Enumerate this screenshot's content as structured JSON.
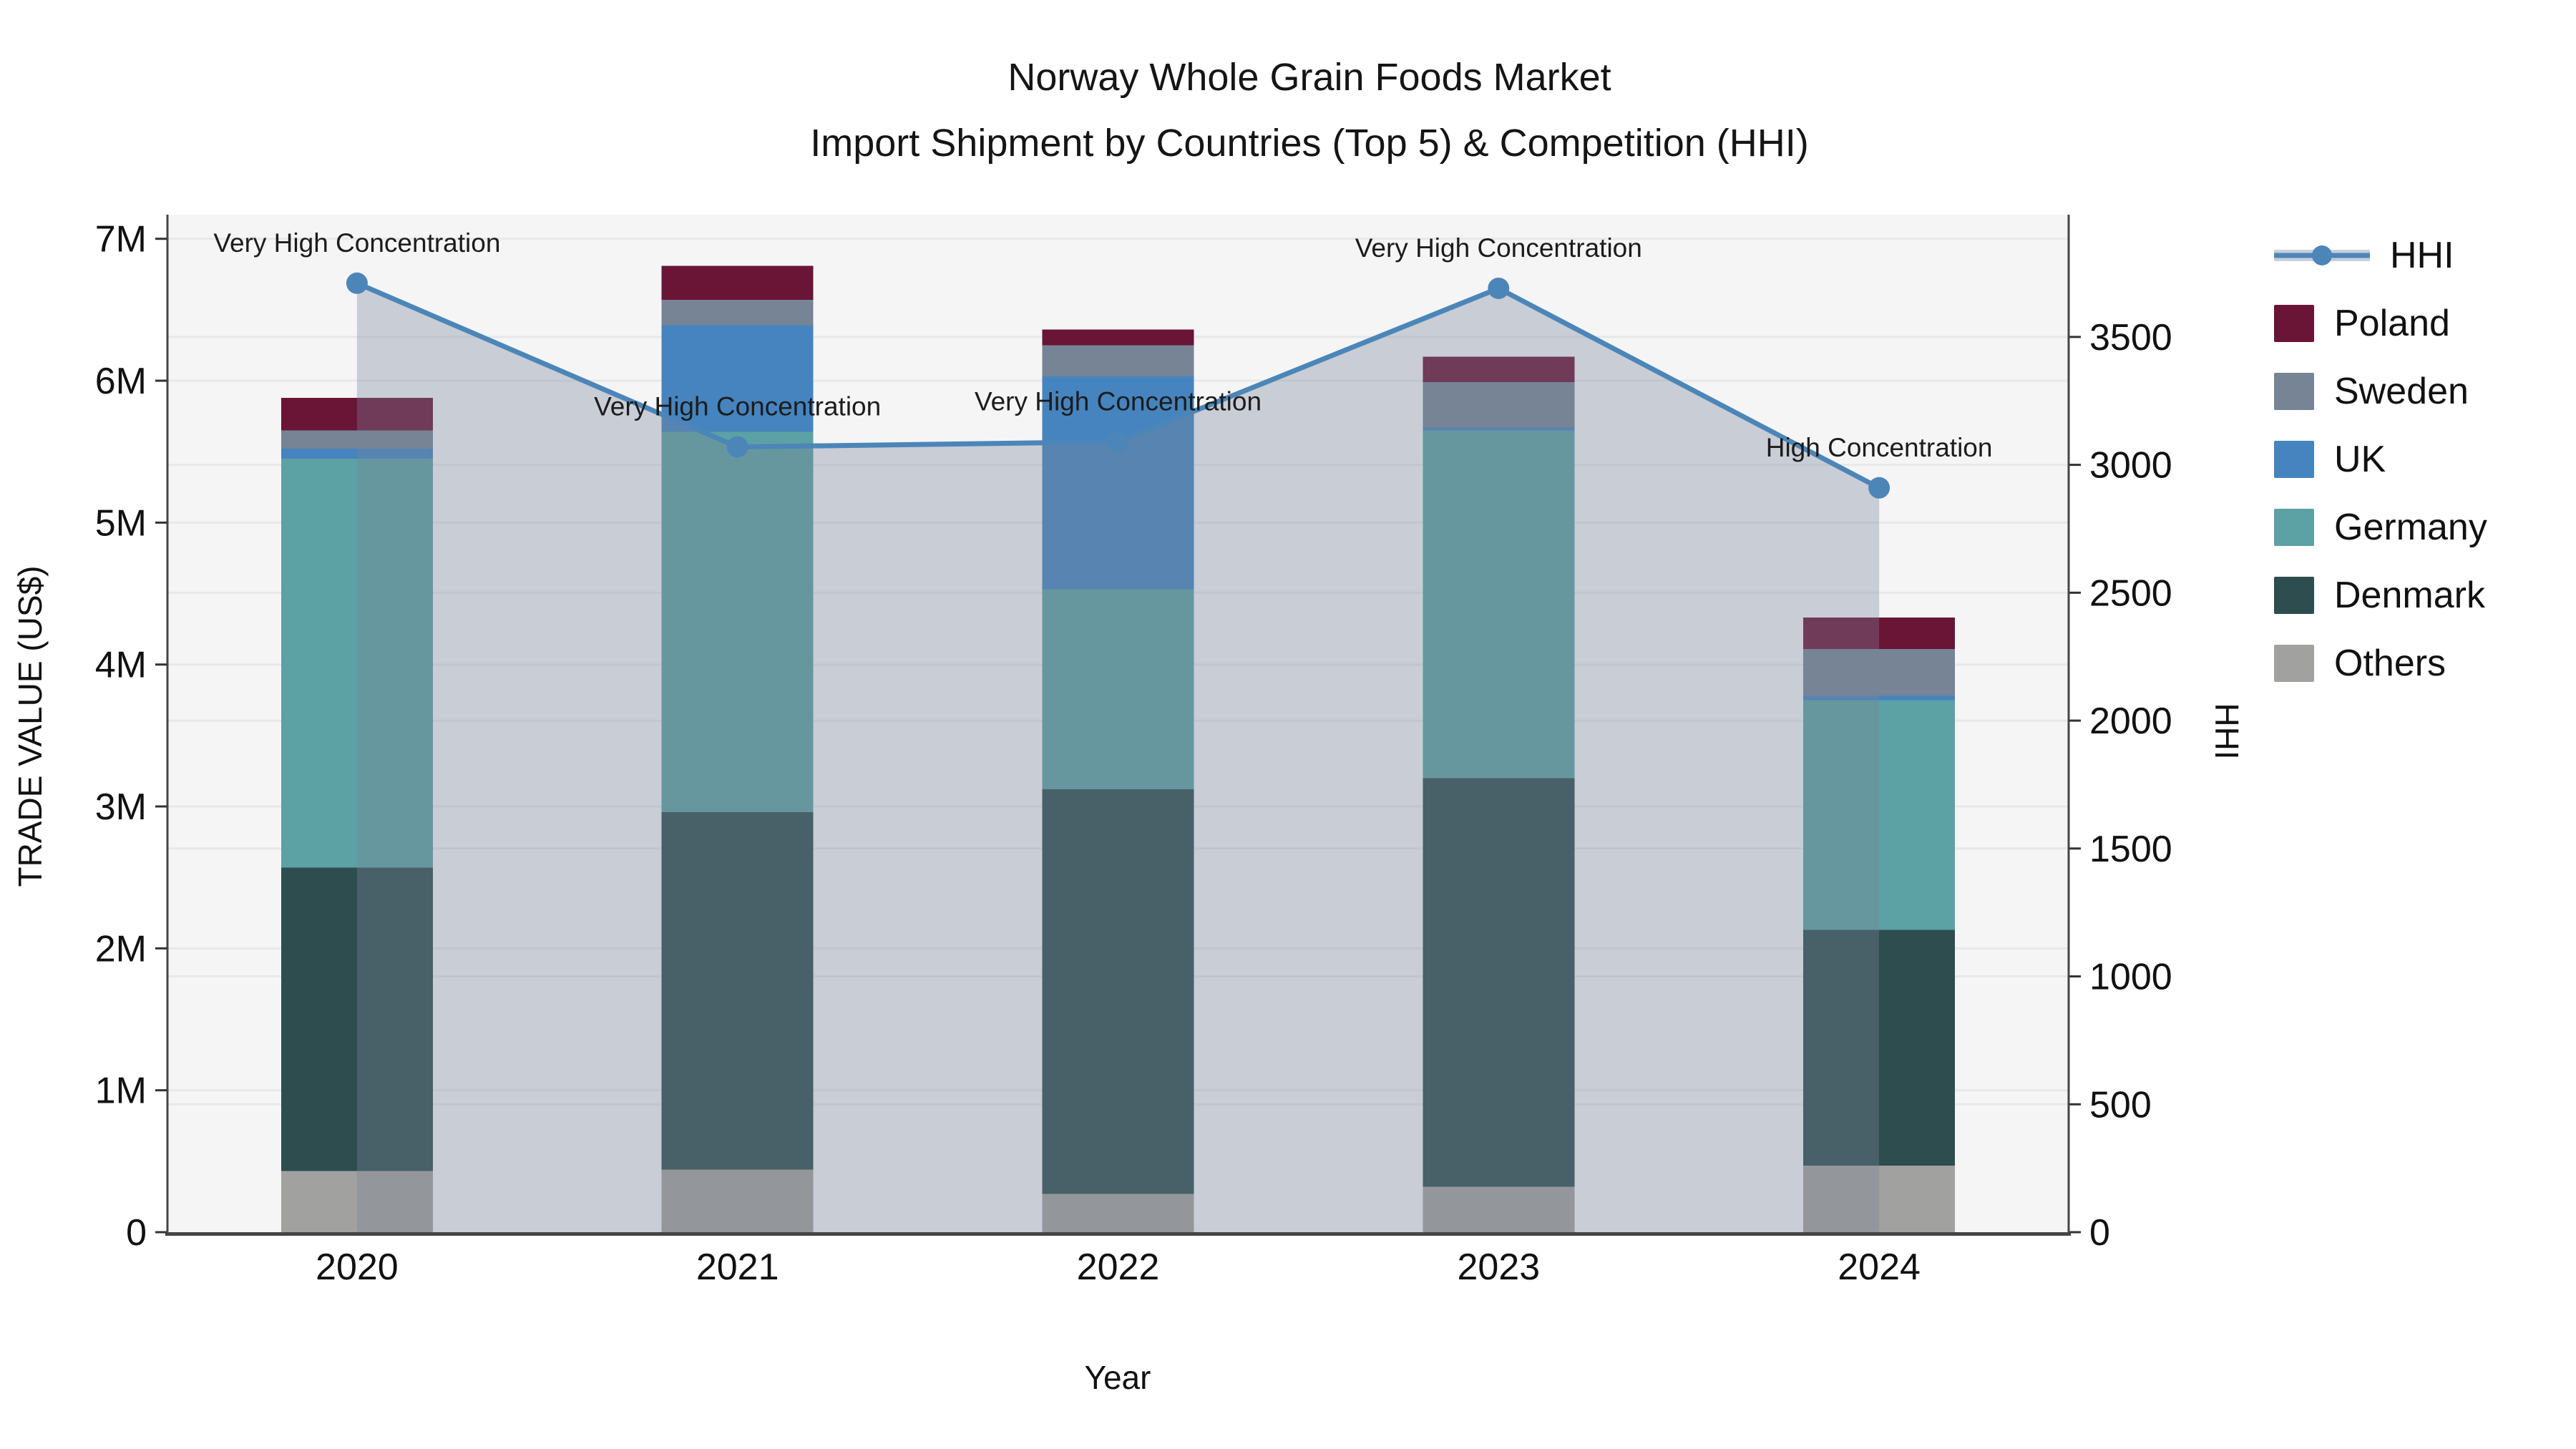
{
  "title": {
    "line1": "Norway Whole Grain Foods Market",
    "line2": "Import Shipment by Countries (Top 5) & Competition (HHI)"
  },
  "axis_labels": {
    "y_left": "TRADE VALUE (US$)",
    "y_right": "HHI",
    "x": "Year"
  },
  "chart_data": {
    "type": "bar+line",
    "title": "Norway Whole Grain Foods Market — Import Shipment by Countries (Top 5) & Competition (HHI)",
    "categories": [
      "2020",
      "2021",
      "2022",
      "2023",
      "2024"
    ],
    "unit_left": "Trade value, millions US$",
    "unit_right": "HHI index",
    "series": [
      {
        "name": "Others",
        "color": "#A1A19F",
        "values": [
          0.43,
          0.44,
          0.27,
          0.32,
          0.47
        ]
      },
      {
        "name": "Denmark",
        "color": "#2E4D4E",
        "values": [
          2.14,
          2.52,
          2.85,
          2.88,
          1.66
        ]
      },
      {
        "name": "Germany",
        "color": "#5CA1A3",
        "values": [
          2.88,
          2.68,
          1.41,
          2.45,
          1.62
        ]
      },
      {
        "name": "UK",
        "color": "#4584BF",
        "values": [
          0.07,
          0.75,
          1.5,
          0.02,
          0.03
        ]
      },
      {
        "name": "Sweden",
        "color": "#768495",
        "values": [
          0.13,
          0.18,
          0.22,
          0.32,
          0.33
        ]
      },
      {
        "name": "Poland",
        "color": "#6A1536",
        "values": [
          0.23,
          0.24,
          0.11,
          0.18,
          0.22
        ]
      }
    ],
    "bar_totals": [
      5.88,
      6.81,
      6.36,
      6.17,
      4.33
    ],
    "hhi": {
      "name": "HHI",
      "values": [
        3710,
        3070,
        3090,
        3690,
        2910
      ],
      "line_color": "#4C86B8",
      "area_fill_color": "rgba(119,131,152,0.35)"
    },
    "annotations": [
      "Very High Concentration",
      "Very High Concentration",
      "Very High Concentration",
      "Very High Concentration",
      "High Concentration"
    ],
    "y_left_axis": {
      "tick_labels": [
        "0",
        "1M",
        "2M",
        "3M",
        "4M",
        "5M",
        "6M",
        "7M"
      ],
      "tick_values": [
        0,
        1,
        2,
        3,
        4,
        5,
        6,
        7
      ],
      "max": 7.17
    },
    "y_right_axis": {
      "tick_labels": [
        "0",
        "500",
        "1000",
        "1500",
        "2000",
        "2500",
        "3000",
        "3500"
      ],
      "tick_values": [
        0,
        500,
        1000,
        1500,
        2000,
        2500,
        3000,
        3500
      ],
      "max": 3978
    },
    "grid": true,
    "legend_position": "right"
  },
  "legend": {
    "items": [
      {
        "label": "HHI",
        "type": "line",
        "color": "#4C86B8"
      },
      {
        "label": "Poland",
        "type": "swatch",
        "color": "#6A1536"
      },
      {
        "label": "Sweden",
        "type": "swatch",
        "color": "#768495"
      },
      {
        "label": "UK",
        "type": "swatch",
        "color": "#4584BF"
      },
      {
        "label": "Germany",
        "type": "swatch",
        "color": "#5CA1A3"
      },
      {
        "label": "Denmark",
        "type": "swatch",
        "color": "#2E4D4E"
      },
      {
        "label": "Others",
        "type": "swatch",
        "color": "#A1A19F"
      }
    ]
  }
}
